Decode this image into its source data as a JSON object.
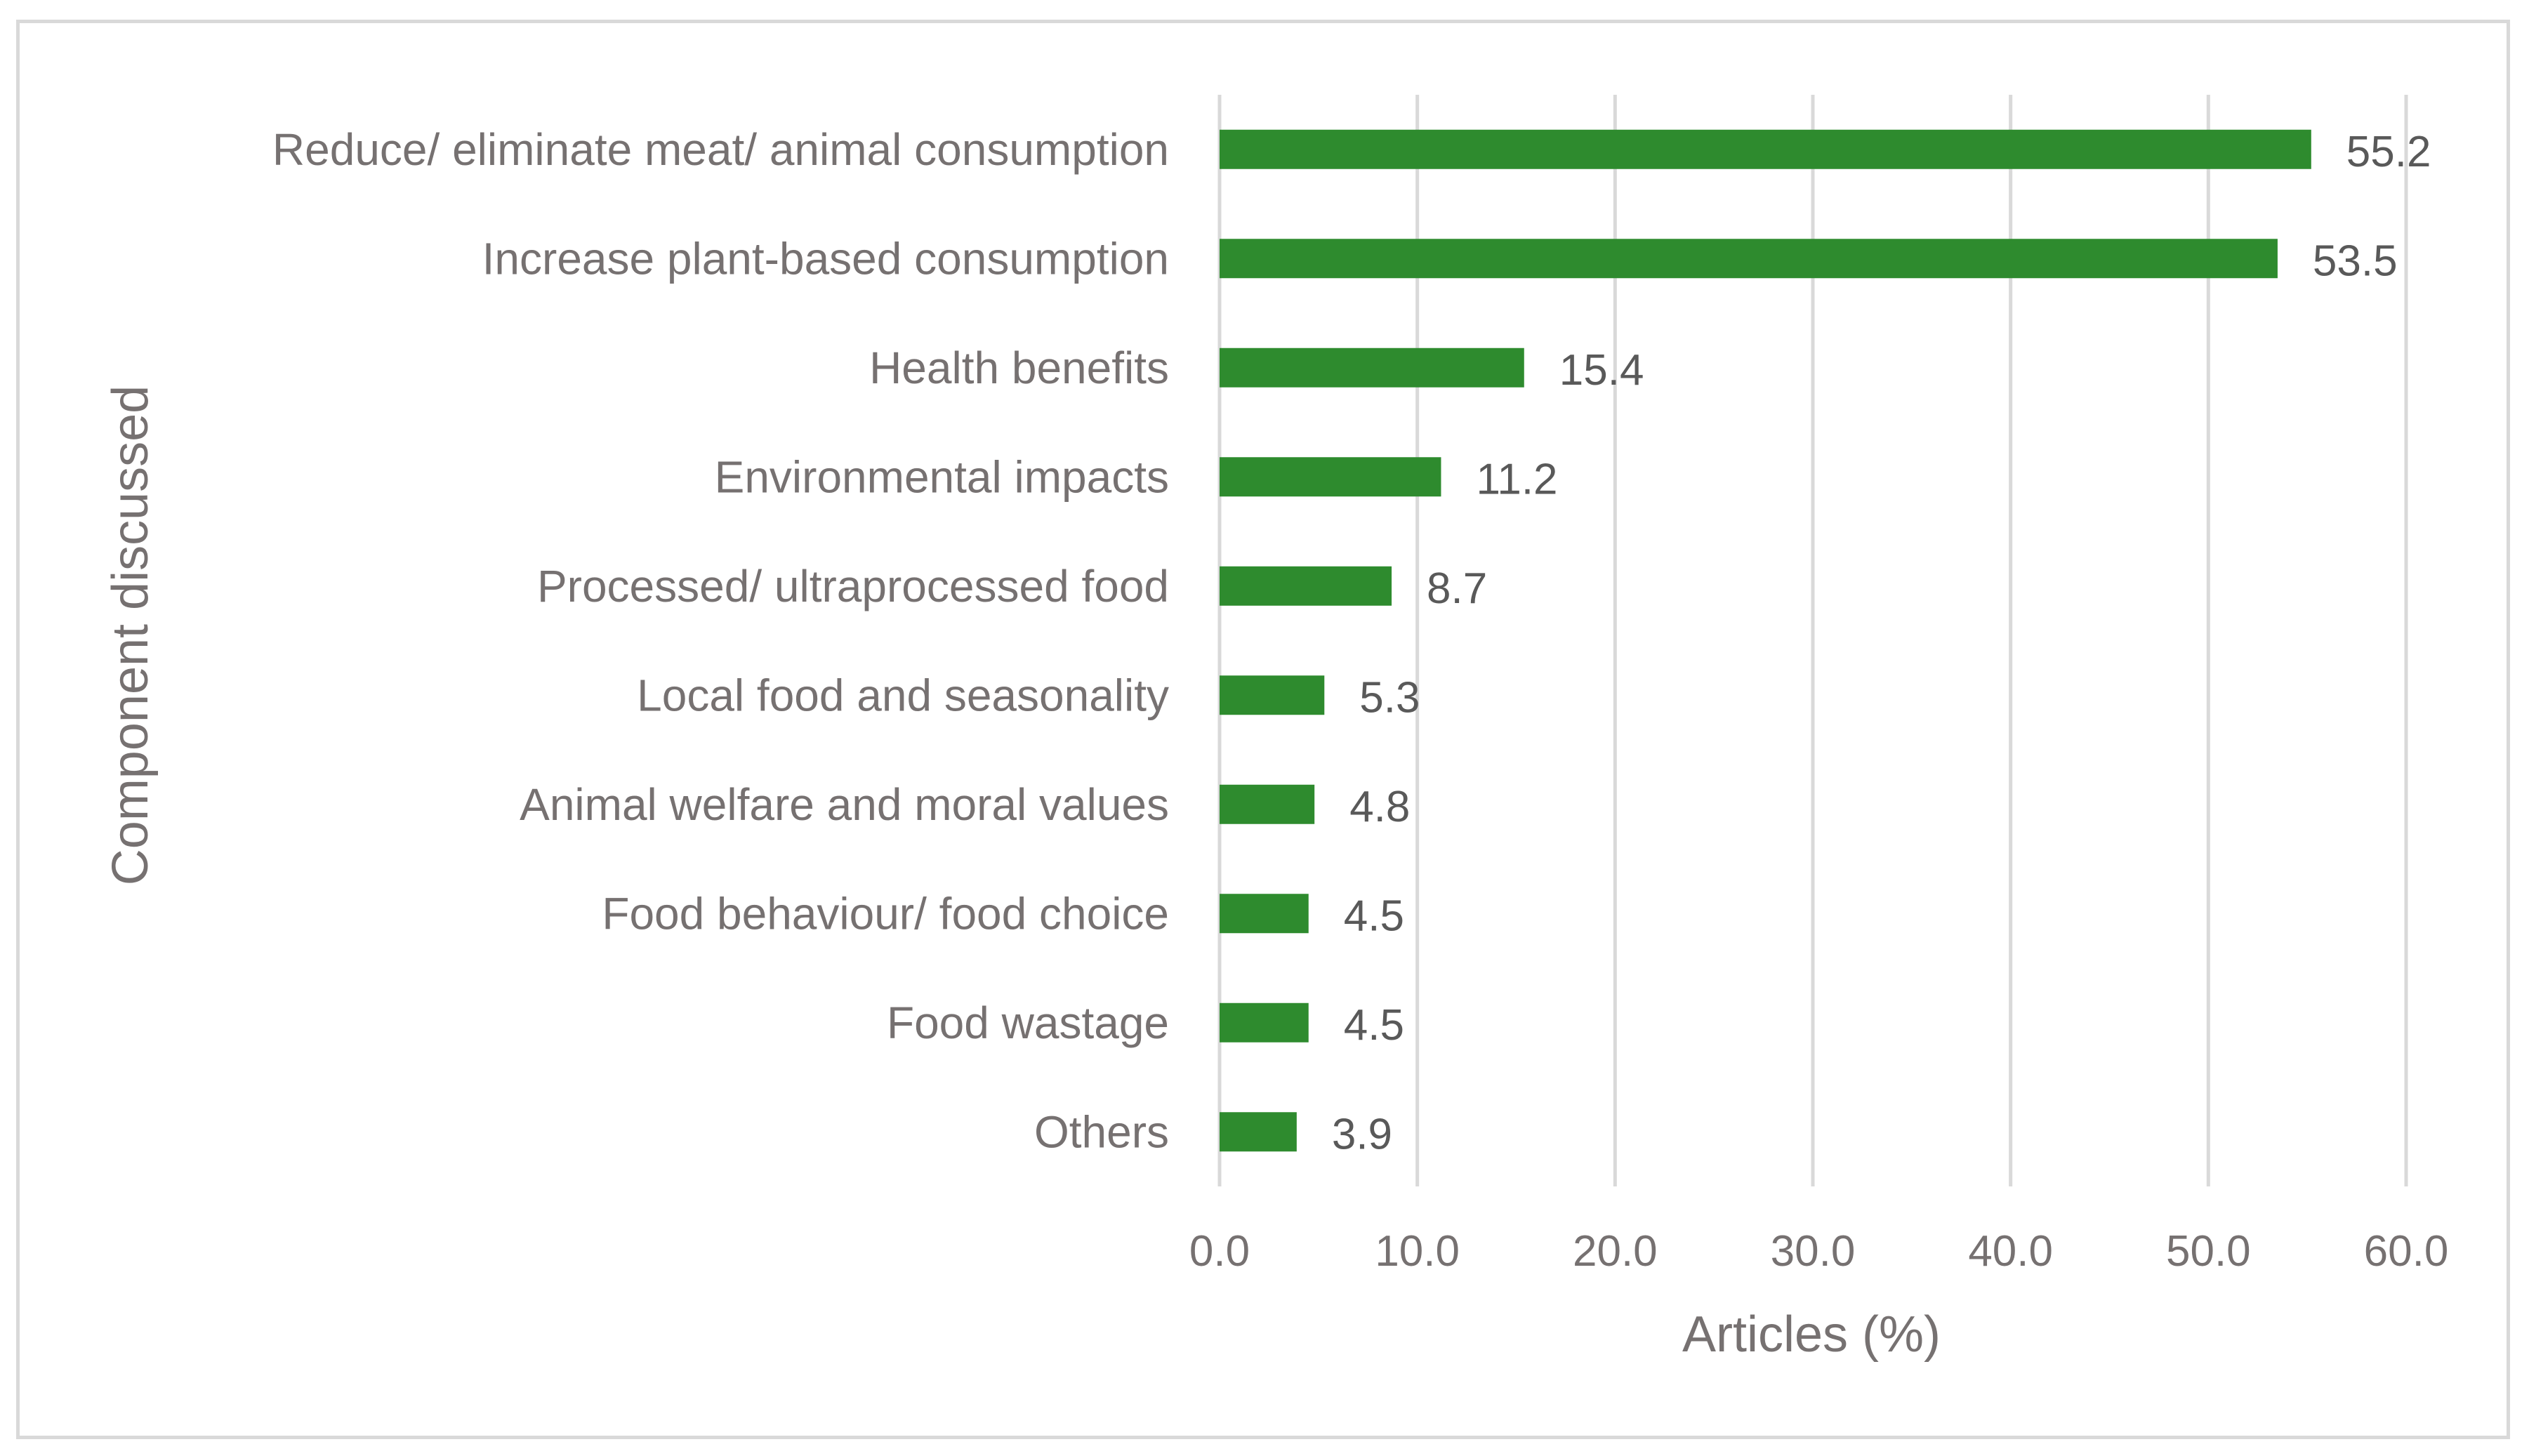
{
  "chart_data": {
    "type": "bar",
    "orientation": "horizontal",
    "title": "",
    "xlabel": "Articles (%)",
    "ylabel": "Component discussed",
    "xlim": [
      0,
      60
    ],
    "x_ticks": [
      0,
      10,
      20,
      30,
      40,
      50,
      60
    ],
    "x_tick_labels": [
      "0.0",
      "10.0",
      "20.0",
      "30.0",
      "40.0",
      "50.0",
      "60.0"
    ],
    "grid": "vertical",
    "legend": "none",
    "bar_color": "#2e8b2e",
    "gridline_color": "#d9d9d9",
    "categories": [
      "Reduce/ eliminate meat/ animal consumption",
      "Increase plant-based consumption",
      "Health benefits",
      "Environmental impacts",
      "Processed/ ultraprocessed food",
      "Local food and seasonality",
      "Animal welfare and moral values",
      "Food behaviour/ food choice",
      "Food wastage",
      "Others"
    ],
    "values": [
      55.2,
      53.5,
      15.4,
      11.2,
      8.7,
      5.3,
      4.8,
      4.5,
      4.5,
      3.9
    ],
    "value_labels": [
      "55.2",
      "53.5",
      "15.4",
      "11.2",
      "8.7",
      "5.3",
      "4.8",
      "4.5",
      "4.5",
      "3.9"
    ]
  }
}
